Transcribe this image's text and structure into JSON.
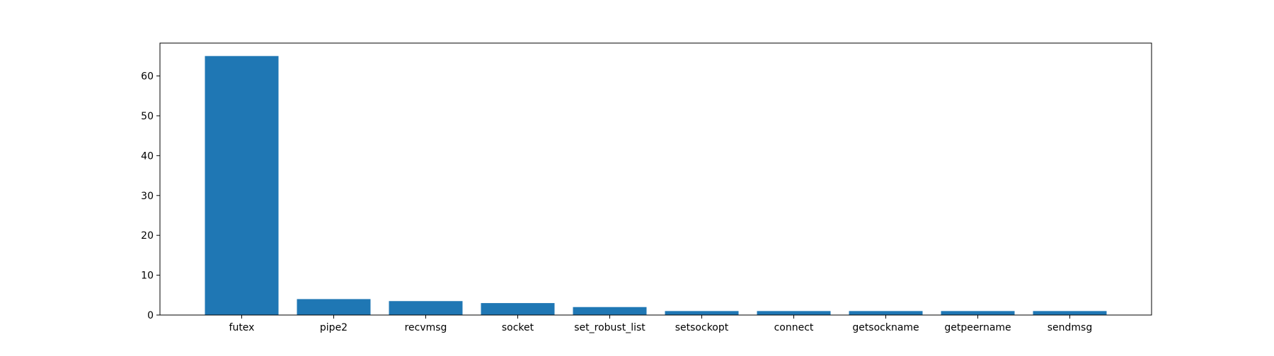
{
  "chart_data": {
    "type": "bar",
    "title": "",
    "xlabel": "",
    "ylabel": "",
    "categories": [
      "futex",
      "pipe2",
      "recvmsg",
      "socket",
      "set_robust_list",
      "setsockopt",
      "connect",
      "getsockname",
      "getpeername",
      "sendmsg"
    ],
    "values": [
      65,
      4,
      3.5,
      3,
      2,
      1,
      1,
      1,
      1,
      1
    ],
    "ylim": [
      0,
      68.25
    ],
    "yticks": [
      0,
      10,
      20,
      30,
      40,
      50,
      60
    ],
    "grid": false,
    "legend": "none",
    "colors": {
      "bar": "#1f77b4",
      "axis": "#000000",
      "background": "#ffffff"
    }
  }
}
